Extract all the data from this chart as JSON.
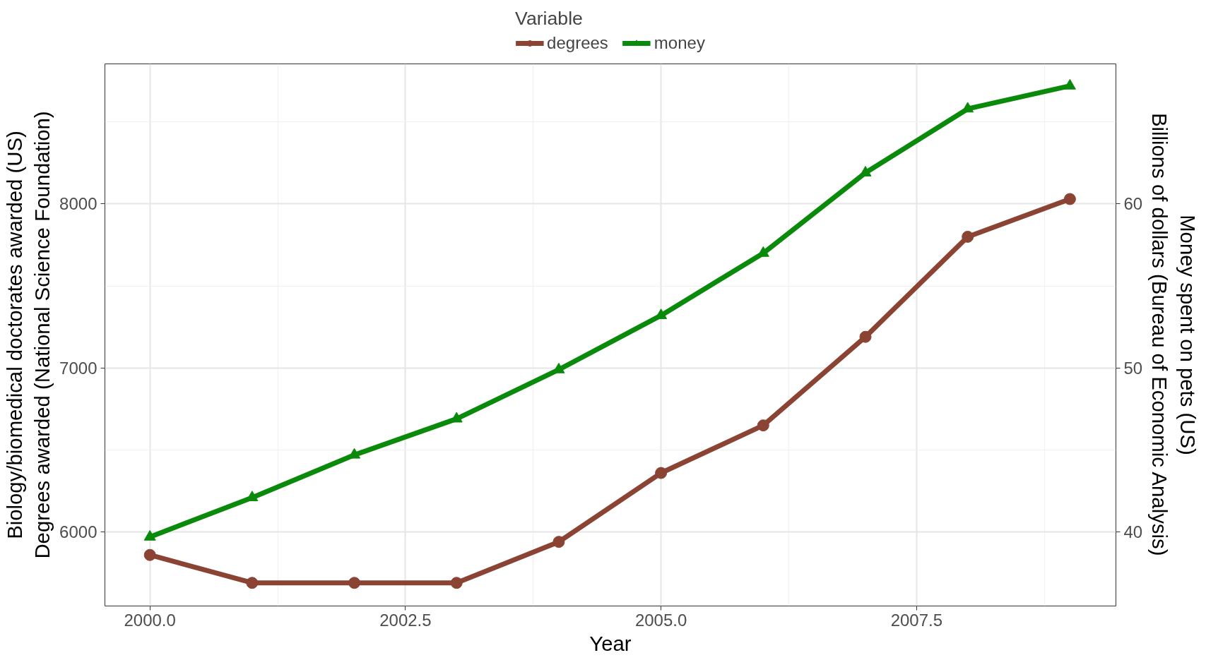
{
  "chart_data": {
    "type": "line",
    "xlabel": "Year",
    "ylabel": "Biology/biomedical doctorates awarded (US)\nDegrees awarded (National Science Foundation)",
    "y2label": "Money spent on pets (US)\nBillions of dollars (Bureau of Economic Analysis)",
    "legend_title": "Variable",
    "legend": "top",
    "grid": true,
    "line_style": "solid",
    "x": [
      2000,
      2001,
      2002,
      2003,
      2004,
      2005,
      2006,
      2007,
      2008,
      2009
    ],
    "series": [
      {
        "name": "degrees",
        "color": "#8b4434",
        "marker": "circle",
        "values": [
          5860,
          5690,
          5690,
          5690,
          5940,
          6360,
          6650,
          7190,
          7800,
          8030
        ]
      },
      {
        "name": "money",
        "color": "#0a8a0a",
        "marker": "triangle",
        "axis": "y2",
        "values": [
          39.7,
          42.1,
          44.7,
          46.9,
          49.9,
          53.2,
          57.0,
          61.9,
          65.8,
          67.2
        ]
      }
    ],
    "xlim": [
      1999.56,
      2009.45
    ],
    "xticks": [
      {
        "value": 2000,
        "label": "2000.0"
      },
      {
        "value": 2002.5,
        "label": "2002.5"
      },
      {
        "value": 2005,
        "label": "2005.0"
      },
      {
        "value": 2007.5,
        "label": "2007.5"
      }
    ],
    "ylim": [
      5549,
      8854
    ],
    "yticks": [
      6000,
      7000,
      8000
    ],
    "y2lim": [
      35.49,
      68.54
    ],
    "y2ticks": [
      40,
      50,
      60
    ]
  }
}
